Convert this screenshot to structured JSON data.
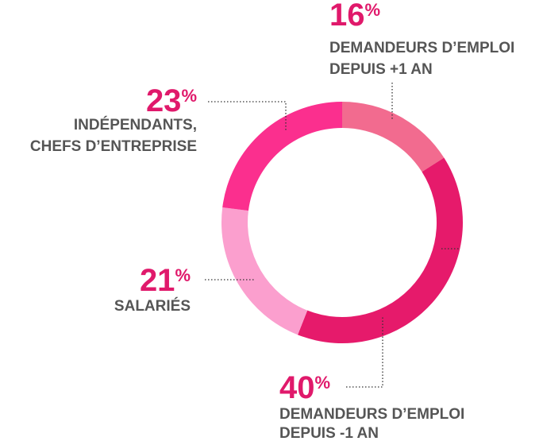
{
  "chart_data": {
    "type": "donut",
    "categories": [
      [
        "DEMANDEURS D’EMPLOI",
        "DEPUIS +1 AN"
      ],
      [
        "DEMANDEURS D’EMPLOI",
        "DEPUIS -1 AN"
      ],
      [
        "SALARIÉS"
      ],
      [
        "INDÉPENDANTS,",
        "CHEFS D’ENTREPRISE"
      ]
    ],
    "values": [
      16,
      40,
      21,
      23
    ],
    "unit": "%",
    "colors": [
      "#f26b8f",
      "#e61a6b",
      "#fb9fce",
      "#fb2f8e"
    ]
  }
}
